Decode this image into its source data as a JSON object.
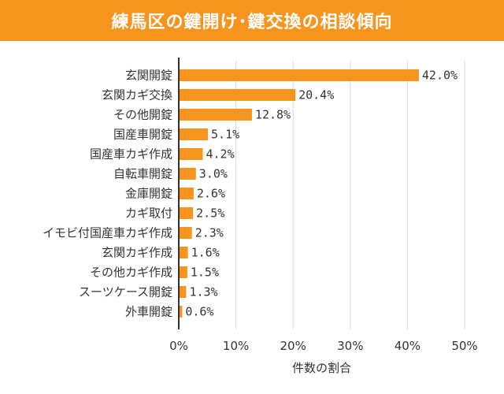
{
  "colors": {
    "accent": "#f7941d",
    "title_text": "#ffffff",
    "bar": "#f7941d",
    "grid": "#d9d9d9",
    "axis": "#333333"
  },
  "chart_data": {
    "type": "bar",
    "orientation": "horizontal",
    "title": "練馬区の鍵開け･鍵交換の相談傾向",
    "xlabel": "件数の割合",
    "ylabel": "",
    "xlim": [
      0,
      50
    ],
    "ticks": [
      0,
      10,
      20,
      30,
      40,
      50
    ],
    "tick_labels": [
      "0%",
      "10%",
      "20%",
      "30%",
      "40%",
      "50%"
    ],
    "grid": true,
    "categories": [
      "玄関開錠",
      "玄関カギ交換",
      "その他開錠",
      "国産車開錠",
      "国産車カギ作成",
      "自転車開錠",
      "金庫開錠",
      "カギ取付",
      "イモビ付国産車カギ作成",
      "玄関カギ作成",
      "その他カギ作成",
      "スーツケース開錠",
      "外車開錠"
    ],
    "values": [
      42.0,
      20.4,
      12.8,
      5.1,
      4.2,
      3.0,
      2.6,
      2.5,
      2.3,
      1.6,
      1.5,
      1.3,
      0.6
    ],
    "value_labels": [
      "42.0%",
      "20.4%",
      "12.8%",
      "5.1%",
      "4.2%",
      "3.0%",
      "2.6%",
      "2.5%",
      "2.3%",
      "1.6%",
      "1.5%",
      "1.3%",
      "0.6%"
    ]
  }
}
